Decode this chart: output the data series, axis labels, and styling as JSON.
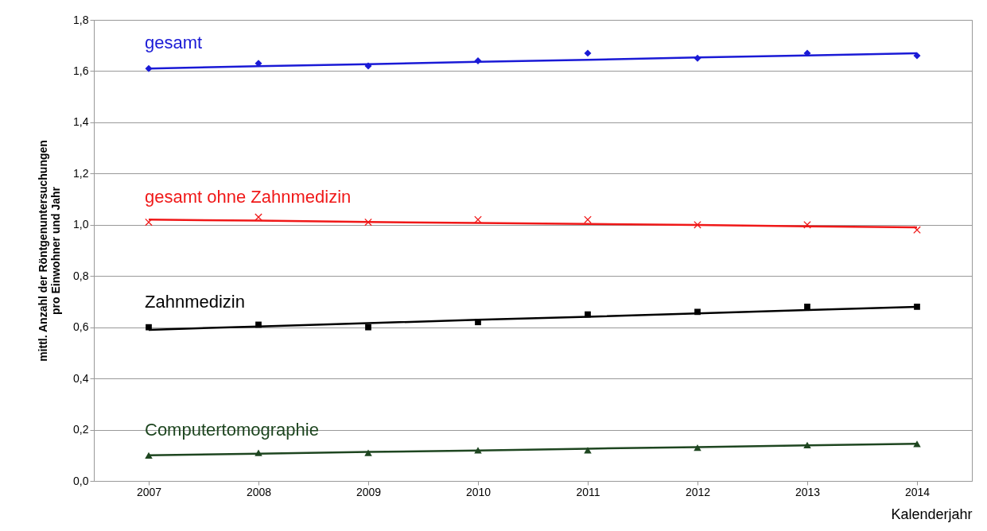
{
  "chart_data": {
    "type": "scatter",
    "xlabel": "Kalenderjahr",
    "ylabel": "mittl. Anzahl der Röntgenuntersuchungen\npro Einwohner und Jahr",
    "categories": [
      "2007",
      "2008",
      "2009",
      "2010",
      "2011",
      "2012",
      "2013",
      "2014"
    ],
    "ylim": [
      0,
      1.8
    ],
    "yticks": [
      {
        "value": 0,
        "label": "0,0"
      },
      {
        "value": 0.2,
        "label": "0,2"
      },
      {
        "value": 0.4,
        "label": "0,4"
      },
      {
        "value": 0.6,
        "label": "0,6"
      },
      {
        "value": 0.8,
        "label": "0,8"
      },
      {
        "value": 1,
        "label": "1,0"
      },
      {
        "value": 1.2,
        "label": "1,2"
      },
      {
        "value": 1.4,
        "label": "1,4"
      },
      {
        "value": 1.6,
        "label": "1,6"
      },
      {
        "value": 1.8,
        "label": "1,8"
      }
    ],
    "grid": "y",
    "series": [
      {
        "name": "gesamt",
        "marker": "diamond",
        "color": "#1a1ad6",
        "values": [
          1.61,
          1.63,
          1.62,
          1.64,
          1.67,
          1.65,
          1.67,
          1.66
        ]
      },
      {
        "type": "line",
        "marker": "none",
        "color": "#1a1ad6",
        "values": [
          1.61,
          1.619,
          1.627,
          1.636,
          1.644,
          1.653,
          1.661,
          1.67
        ]
      },
      {
        "name": "gesamt ohne Zahnmedizin",
        "marker": "cross",
        "color": "#f01818",
        "values": [
          1.01,
          1.03,
          1.01,
          1.02,
          1.02,
          1.0,
          1.0,
          0.98
        ]
      },
      {
        "type": "line",
        "marker": "none",
        "color": "#f01818",
        "values": [
          1.02,
          1.016,
          1.011,
          1.007,
          1.003,
          0.999,
          0.994,
          0.99
        ]
      },
      {
        "name": "Zahnmedizin",
        "marker": "square",
        "color": "#000000",
        "values": [
          0.6,
          0.61,
          0.6,
          0.62,
          0.65,
          0.66,
          0.68,
          0.68
        ]
      },
      {
        "type": "line",
        "marker": "none",
        "color": "#000000",
        "values": [
          0.59,
          0.603,
          0.616,
          0.629,
          0.641,
          0.654,
          0.667,
          0.68
        ]
      },
      {
        "name": "Computertomographie",
        "marker": "triangle",
        "color": "#1e4620",
        "values": [
          0.1,
          0.11,
          0.11,
          0.12,
          0.12,
          0.13,
          0.14,
          0.145
        ]
      },
      {
        "type": "line",
        "marker": "none",
        "color": "#1e4620",
        "values": [
          0.1,
          0.106,
          0.113,
          0.119,
          0.126,
          0.132,
          0.139,
          0.145
        ]
      }
    ]
  }
}
